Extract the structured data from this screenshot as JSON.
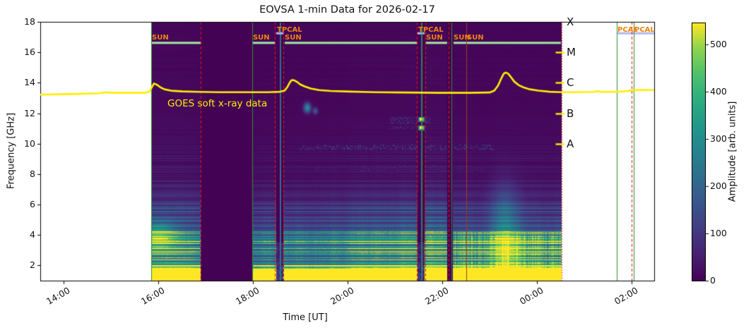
{
  "chart_data": {
    "type": "heatmap",
    "title": "EOVSA 1-min Data for 2026-02-17",
    "xlabel": "Time [UT]",
    "ylabel": "Frequency [GHz]",
    "colorbar_label": "Amplitude [arb. units]",
    "colormap": "viridis",
    "x_range_hours_ut": [
      13.507,
      26.478
    ],
    "y_range_ghz": [
      1,
      18
    ],
    "amplitude_range": [
      0,
      545
    ],
    "grid": false,
    "x_ticks": [
      {
        "label": "14:00",
        "hour": 14
      },
      {
        "label": "16:00",
        "hour": 16
      },
      {
        "label": "18:00",
        "hour": 18
      },
      {
        "label": "20:00",
        "hour": 20
      },
      {
        "label": "22:00",
        "hour": 22
      },
      {
        "label": "00:00",
        "hour": 24
      },
      {
        "label": "02:00",
        "hour": 26
      }
    ],
    "y_ticks": [
      {
        "label": "18",
        "ghz": 18
      },
      {
        "label": "16",
        "ghz": 16
      },
      {
        "label": "14",
        "ghz": 14
      },
      {
        "label": "12",
        "ghz": 12
      },
      {
        "label": "10",
        "ghz": 10
      },
      {
        "label": "8",
        "ghz": 8
      },
      {
        "label": "6",
        "ghz": 6
      },
      {
        "label": "4",
        "ghz": 4
      },
      {
        "label": "2",
        "ghz": 2
      }
    ],
    "colorbar_ticks": [
      {
        "label": "0",
        "value": 0
      },
      {
        "label": "100",
        "value": 100
      },
      {
        "label": "200",
        "value": 200
      },
      {
        "label": "300",
        "value": 300
      },
      {
        "label": "400",
        "value": 400
      },
      {
        "label": "500",
        "value": 500
      }
    ],
    "goes_classes": [
      {
        "label": "X",
        "level_ghz": 18
      },
      {
        "label": "M",
        "level_ghz": 16
      },
      {
        "label": "C",
        "level_ghz": 14
      },
      {
        "label": "B",
        "level_ghz": 12
      },
      {
        "label": "A",
        "level_ghz": 10
      }
    ],
    "goes_line": {
      "annotation": "GOES soft x-ray data",
      "points": [
        [
          13.507,
          13.22
        ],
        [
          14.15,
          13.26
        ],
        [
          14.75,
          13.31
        ],
        [
          14.9,
          13.38
        ],
        [
          14.99,
          13.34
        ],
        [
          15.27,
          13.34
        ],
        [
          15.72,
          13.34
        ],
        [
          15.81,
          13.41
        ],
        [
          15.87,
          13.73
        ],
        [
          15.91,
          13.95
        ],
        [
          15.97,
          13.87
        ],
        [
          16.05,
          13.69
        ],
        [
          16.13,
          13.57
        ],
        [
          16.27,
          13.48
        ],
        [
          16.51,
          13.43
        ],
        [
          16.84,
          13.4
        ],
        [
          17.28,
          13.38
        ],
        [
          17.88,
          13.38
        ],
        [
          18.33,
          13.38
        ],
        [
          18.57,
          13.41
        ],
        [
          18.67,
          13.48
        ],
        [
          18.73,
          13.73
        ],
        [
          18.78,
          14.02
        ],
        [
          18.82,
          14.18
        ],
        [
          18.87,
          14.16
        ],
        [
          18.93,
          14.06
        ],
        [
          19.0,
          13.89
        ],
        [
          19.09,
          13.76
        ],
        [
          19.22,
          13.62
        ],
        [
          19.4,
          13.52
        ],
        [
          19.64,
          13.46
        ],
        [
          20.05,
          13.42
        ],
        [
          20.57,
          13.38
        ],
        [
          21.16,
          13.36
        ],
        [
          21.91,
          13.34
        ],
        [
          22.58,
          13.34
        ],
        [
          23.0,
          13.36
        ],
        [
          23.1,
          13.48
        ],
        [
          23.18,
          13.82
        ],
        [
          23.24,
          14.24
        ],
        [
          23.3,
          14.6
        ],
        [
          23.34,
          14.67
        ],
        [
          23.39,
          14.6
        ],
        [
          23.45,
          14.38
        ],
        [
          23.52,
          14.08
        ],
        [
          23.61,
          13.85
        ],
        [
          23.72,
          13.69
        ],
        [
          23.85,
          13.57
        ],
        [
          24.03,
          13.48
        ],
        [
          24.27,
          13.41
        ],
        [
          24.52,
          13.38
        ],
        [
          24.82,
          13.38
        ],
        [
          25.19,
          13.4
        ],
        [
          25.28,
          13.44
        ],
        [
          25.37,
          13.4
        ],
        [
          25.61,
          13.4
        ],
        [
          25.85,
          13.44
        ],
        [
          26.02,
          13.5
        ],
        [
          26.21,
          13.53
        ],
        [
          26.39,
          13.52
        ],
        [
          26.48,
          13.52
        ]
      ]
    },
    "scans": [
      {
        "label": "SUN",
        "kind": "sun",
        "t0": 15.851,
        "t1": 16.896,
        "label_row": "lower"
      },
      {
        "label": "SUN",
        "kind": "sun",
        "t0": 17.985,
        "t1": 18.478,
        "label_row": "lower"
      },
      {
        "label": "TPCAL",
        "kind": "tpcal",
        "t0": 18.493,
        "t1": 18.642,
        "label_row": "upper"
      },
      {
        "label": "SUN",
        "kind": "sun",
        "t0": 18.657,
        "t1": 21.463,
        "label_row": "lower"
      },
      {
        "label": "TPCAL",
        "kind": "tpcal",
        "t0": 21.478,
        "t1": 21.627,
        "label_row": "upper"
      },
      {
        "label": "SUN",
        "kind": "sun",
        "t0": 21.642,
        "t1": 22.104,
        "label_row": "lower"
      },
      {
        "label": "SUN",
        "kind": "sun",
        "t0": 22.224,
        "t1": 22.507,
        "label_row": "lower"
      },
      {
        "label": "SUN",
        "kind": "sun",
        "t0": 22.507,
        "t1": 24.522,
        "label_row": "lower"
      },
      {
        "label": "PCAL",
        "kind": "pcal",
        "t0": 25.687,
        "t1": 26.0,
        "label_row": "upper"
      },
      {
        "label": "PCAL",
        "kind": "pcal",
        "t0": 26.045,
        "t1": 26.478,
        "label_row": "upper"
      }
    ],
    "data_gaps": [
      {
        "t0": 16.896,
        "t1": 17.985
      },
      {
        "t0": 22.104,
        "t1": 22.224
      }
    ],
    "coverage_bars": [
      {
        "t0": 15.851,
        "t1": 16.896,
        "f": 16.62,
        "color_key": "coverage_sun"
      },
      {
        "t0": 18.0,
        "t1": 18.463,
        "f": 16.62,
        "color_key": "coverage_sun"
      },
      {
        "t0": 18.672,
        "t1": 21.463,
        "f": 16.62,
        "color_key": "coverage_sun"
      },
      {
        "t0": 21.657,
        "t1": 22.104,
        "f": 16.62,
        "color_key": "coverage_sun"
      },
      {
        "t0": 22.239,
        "t1": 24.507,
        "f": 16.62,
        "color_key": "coverage_sun"
      },
      {
        "t0": 18.493,
        "t1": 18.642,
        "f": 17.25,
        "color_key": "coverage_cal"
      },
      {
        "t0": 21.478,
        "t1": 21.627,
        "f": 17.25,
        "color_key": "coverage_cal"
      },
      {
        "t0": 25.687,
        "t1": 26.478,
        "f": 17.25,
        "color_key": "coverage_cal"
      }
    ],
    "vlines": [
      {
        "t": 15.851,
        "style": "solid",
        "color_key": "green_line"
      },
      {
        "t": 17.985,
        "style": "solid",
        "color_key": "green_line"
      },
      {
        "t": 21.567,
        "style": "solid",
        "color_key": "green_line"
      },
      {
        "t": 22.194,
        "style": "solid",
        "color_key": "green_line"
      },
      {
        "t": 25.687,
        "style": "solid",
        "color_key": "green_line"
      },
      {
        "t": 26.045,
        "style": "solid",
        "color_key": "green_line"
      },
      {
        "t": 16.896,
        "style": "dashed",
        "color_key": "red_line"
      },
      {
        "t": 18.463,
        "style": "dashed",
        "color_key": "red_line"
      },
      {
        "t": 18.642,
        "style": "dashed",
        "color_key": "red_line"
      },
      {
        "t": 21.463,
        "style": "dashed",
        "color_key": "red_line"
      },
      {
        "t": 21.642,
        "style": "dashed",
        "color_key": "red_line"
      },
      {
        "t": 22.134,
        "style": "dashed",
        "color_key": "red_line"
      },
      {
        "t": 26.0,
        "style": "dashed",
        "color_key": "red_line"
      },
      {
        "t": 24.522,
        "style": "dotted",
        "color_key": "red_line"
      },
      {
        "t": 22.507,
        "style": "solid",
        "color_key": "darkred_line"
      }
    ],
    "mean_spectrum_profile": [
      [
        1.0,
        545
      ],
      [
        1.55,
        542
      ],
      [
        1.8,
        530
      ],
      [
        2.0,
        480
      ],
      [
        2.15,
        400
      ],
      [
        2.4,
        330
      ],
      [
        2.7,
        310
      ],
      [
        3.0,
        330
      ],
      [
        3.3,
        310
      ],
      [
        3.6,
        330
      ],
      [
        3.9,
        300
      ],
      [
        4.15,
        270
      ],
      [
        4.4,
        200
      ],
      [
        4.7,
        150
      ],
      [
        5.0,
        125
      ],
      [
        5.4,
        105
      ],
      [
        5.8,
        88
      ],
      [
        6.2,
        72
      ],
      [
        6.6,
        58
      ],
      [
        7.0,
        47
      ],
      [
        7.5,
        38
      ],
      [
        8.0,
        30
      ],
      [
        8.6,
        25
      ],
      [
        9.3,
        21
      ],
      [
        10,
        18
      ],
      [
        11,
        15
      ],
      [
        12,
        13
      ],
      [
        13,
        12
      ],
      [
        14,
        11
      ],
      [
        15,
        10
      ],
      [
        16.5,
        9
      ],
      [
        18,
        8
      ]
    ],
    "features": [
      {
        "t": 19.15,
        "f": 12.35,
        "dt": 0.07,
        "df": 0.3,
        "amp": 300
      },
      {
        "t": 19.32,
        "f": 12.15,
        "dt": 0.05,
        "df": 0.2,
        "amp": 160
      },
      {
        "t": 23.33,
        "f": 5.0,
        "dt": 0.3,
        "df": 2.2,
        "amp": 130
      },
      {
        "t": 23.38,
        "f": 2.8,
        "dt": 0.35,
        "df": 1.2,
        "amp": 200
      },
      {
        "t": 16.0,
        "f": 3.9,
        "dt": 0.35,
        "df": 0.9,
        "amp": 220
      }
    ],
    "rfi_bands": [
      {
        "f0": 9.55,
        "f1": 9.95,
        "t0": 19.0,
        "t1": 23.1,
        "p": 0.22,
        "amp": 120
      },
      {
        "f0": 8.2,
        "f1": 8.6,
        "t0": 19.3,
        "t1": 22.9,
        "p": 0.1,
        "amp": 70
      },
      {
        "f0": 14.8,
        "f1": 15.2,
        "t0": 21.2,
        "t1": 22.0,
        "p": 0.08,
        "amp": 60
      },
      {
        "f0": 11.3,
        "f1": 11.75,
        "t0": 20.9,
        "t1": 21.75,
        "p": 0.3,
        "amp": 85
      },
      {
        "f0": 10.9,
        "f1": 11.15,
        "t0": 20.9,
        "t1": 21.6,
        "p": 0.25,
        "amp": 70
      }
    ],
    "tpcal_blobs": [
      {
        "t": 21.55,
        "f": 11.6,
        "amp": 545
      },
      {
        "t": 21.55,
        "f": 11.05,
        "amp": 545
      }
    ]
  },
  "colors": {
    "background": "#ffffff",
    "spectrogram_min": "#440154",
    "goes_line": "#ffee00",
    "scan_label": "#ef820d",
    "green_line": "#2f8f2f",
    "red_line": "#ee1111",
    "darkred_line": "#9e3d22",
    "coverage_sun": "#9fe89f",
    "coverage_cal": "#b0b8ea",
    "tick_text": "#1a1a1a"
  }
}
